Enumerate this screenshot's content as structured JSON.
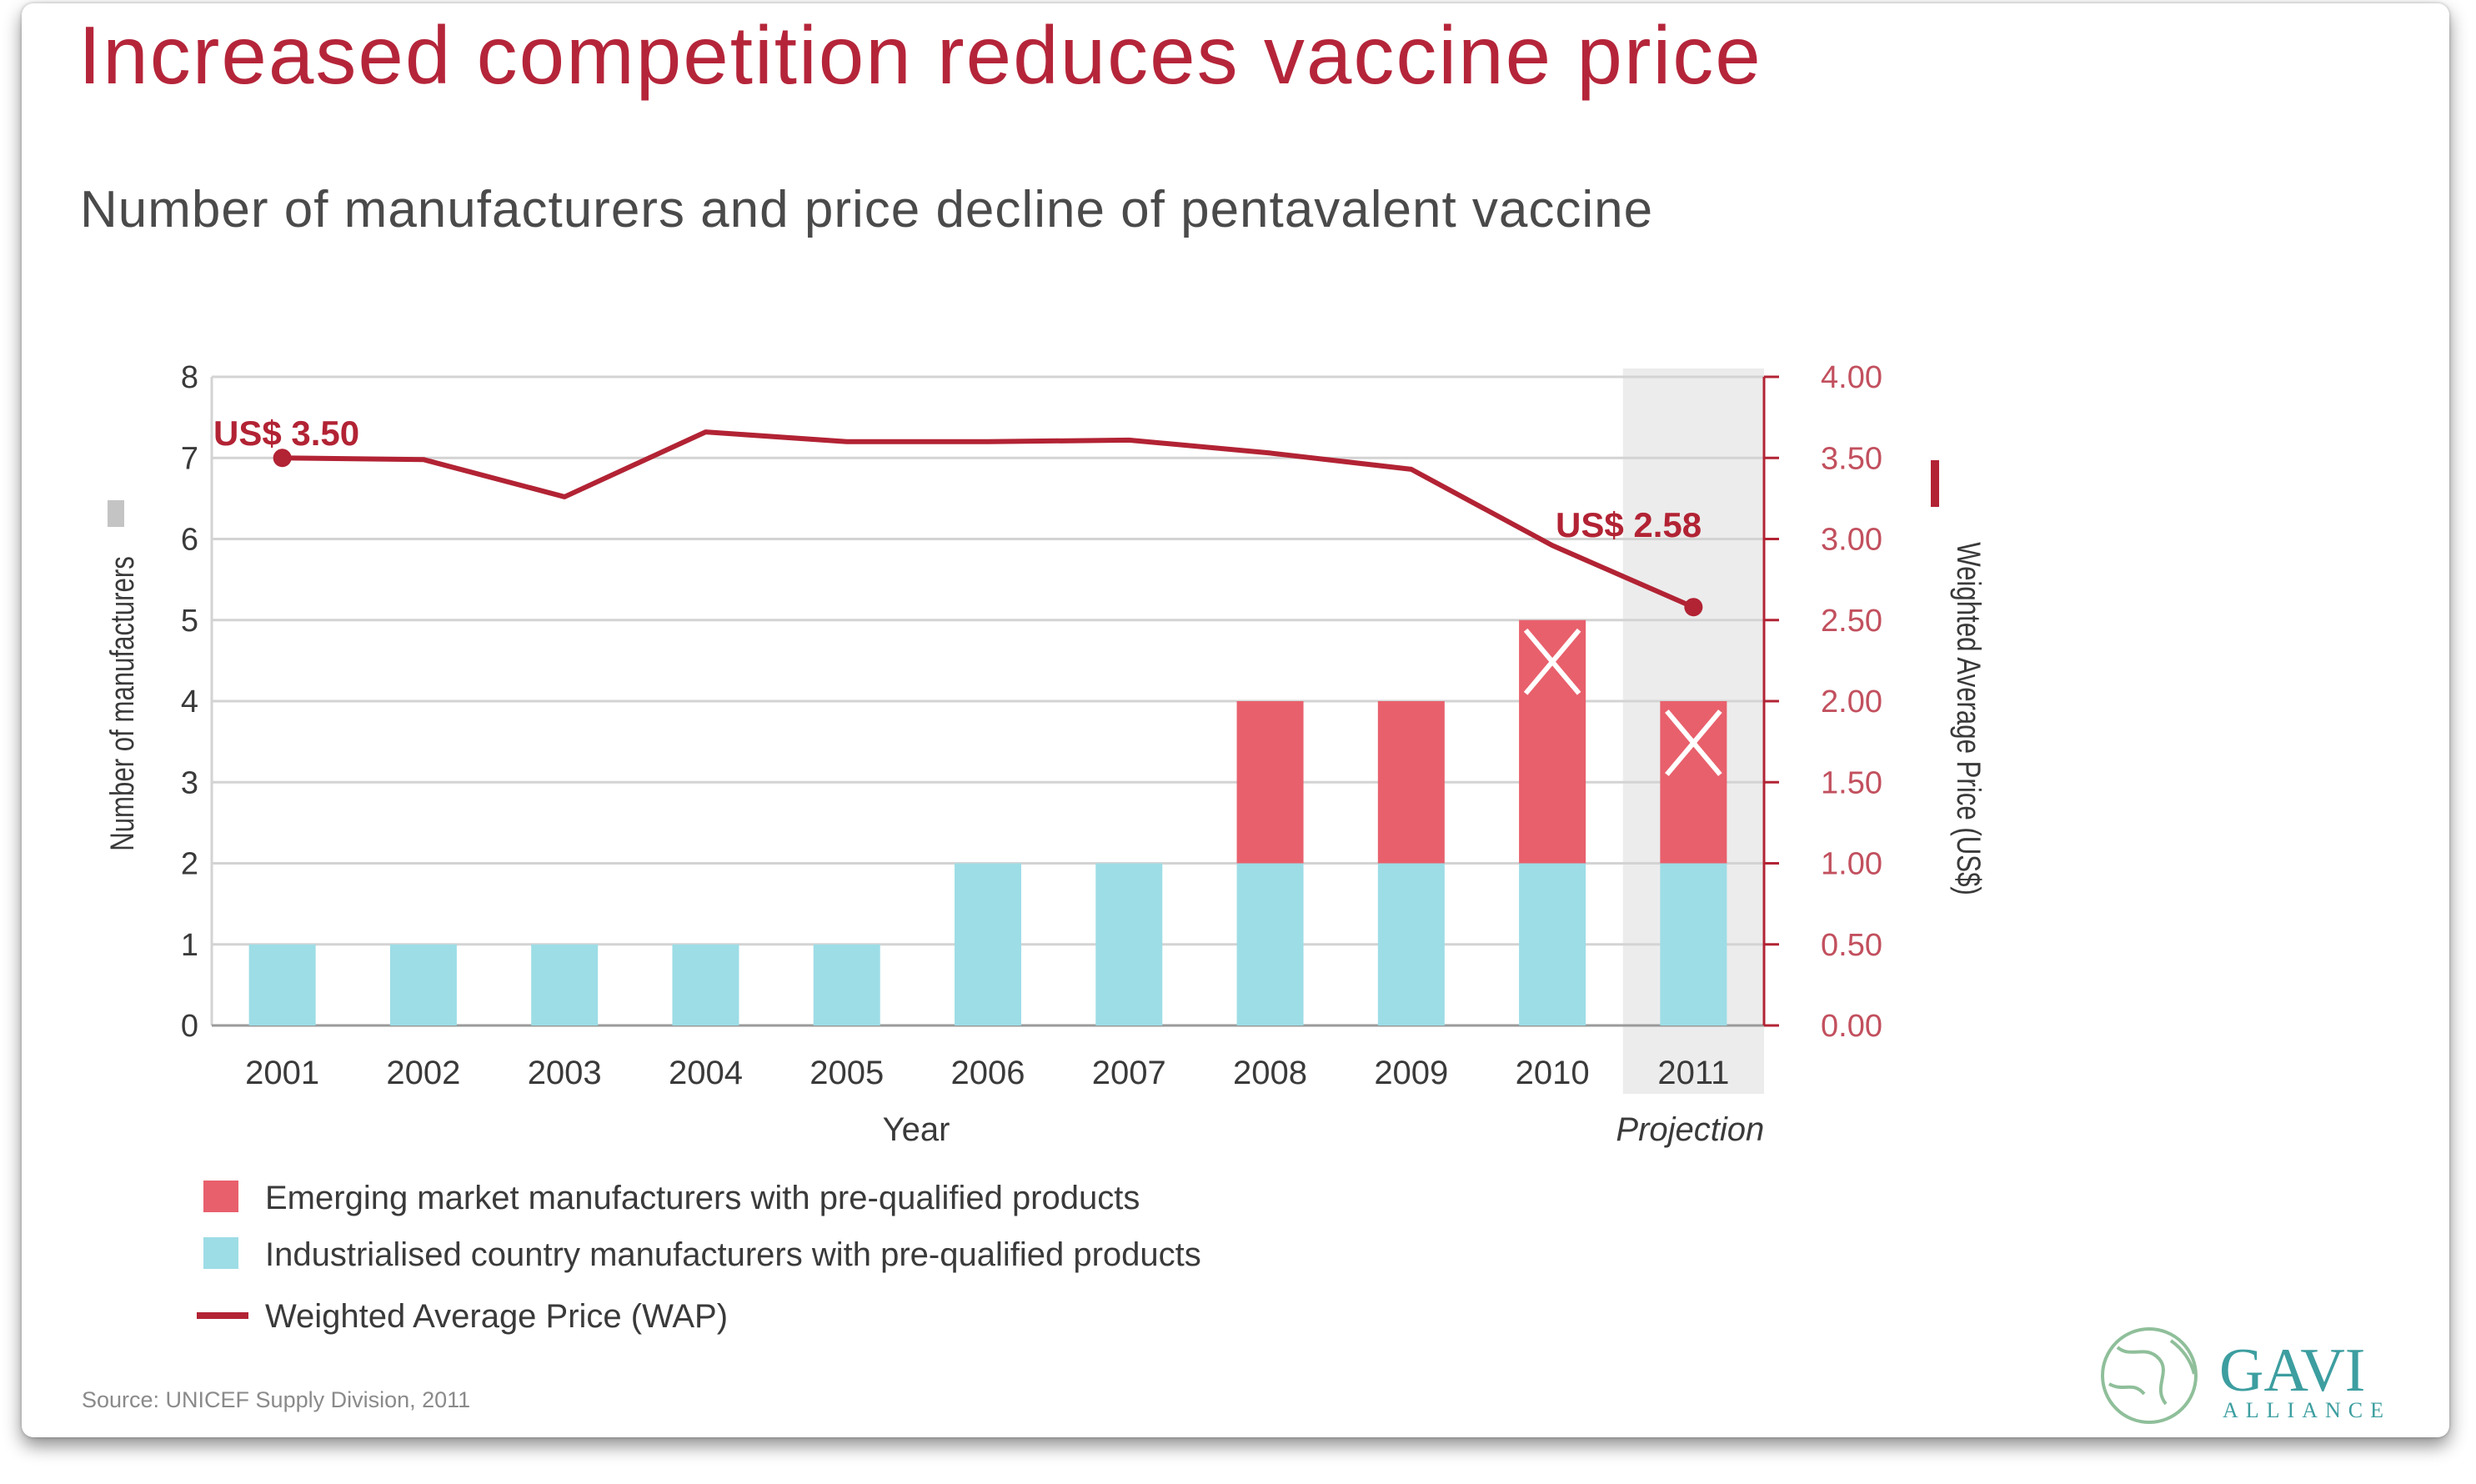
{
  "title": "Increased competition reduces vaccine price",
  "subtitle": "Number of manufacturers and price decline of pentavalent vaccine",
  "source": "Source: UNICEF Supply Division, 2011",
  "logo": {
    "name": "GAVI",
    "sub": "ALLIANCE"
  },
  "colors": {
    "title": "#b5253a",
    "emerging": "#e8606c",
    "industrialised": "#9ddde6",
    "wap": "#b22334",
    "projection_band": "#ececec"
  },
  "chart_data": {
    "type": "bar",
    "stacked": true,
    "categories": [
      "2001",
      "2002",
      "2003",
      "2004",
      "2005",
      "2006",
      "2007",
      "2008",
      "2009",
      "2010",
      "2011"
    ],
    "xlabel": "Year",
    "ylabel": "Number of manufacturers",
    "ylim": [
      0,
      8
    ],
    "yticks": [
      "0",
      "1",
      "2",
      "3",
      "4",
      "5",
      "6",
      "7",
      "8"
    ],
    "y2label": "Weighted Average Price (US$)",
    "y2lim": [
      0,
      4
    ],
    "y2ticks": [
      "0.00",
      "0.50",
      "1.00",
      "1.50",
      "2.00",
      "2.50",
      "3.00",
      "3.50",
      "4.00"
    ],
    "series": [
      {
        "name": "Industrialised country manufacturers with pre-qualified products",
        "type": "bar",
        "values": [
          1,
          1,
          1,
          1,
          1,
          2,
          2,
          2,
          2,
          2,
          2
        ]
      },
      {
        "name": "Emerging market manufacturers with pre-qualified products",
        "type": "bar",
        "values": [
          0,
          0,
          0,
          0,
          0,
          0,
          0,
          2,
          2,
          3,
          2
        ]
      },
      {
        "name": "Weighted Average Price (WAP)",
        "type": "line",
        "axis": "right",
        "values": [
          3.5,
          3.49,
          3.26,
          3.66,
          3.6,
          3.6,
          3.61,
          3.53,
          3.43,
          2.96,
          2.58
        ]
      }
    ],
    "crossed_bars": [
      9,
      10
    ],
    "projection": {
      "category": "2011",
      "label": "Projection"
    },
    "annotations": [
      {
        "text": "US$ 3.50",
        "category": "2001"
      },
      {
        "text": "US$ 2.58",
        "category": "2011"
      }
    ],
    "legend_position": "bottom-left",
    "grid": true
  }
}
